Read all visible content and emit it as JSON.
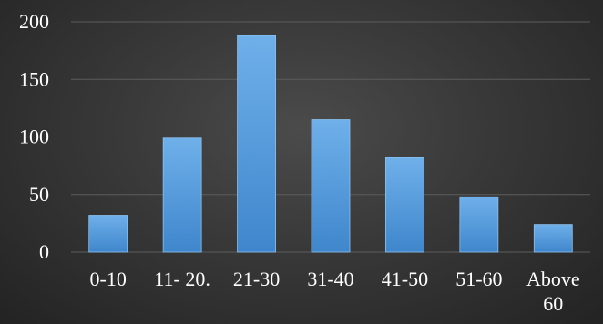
{
  "chart_data": {
    "type": "bar",
    "categories": [
      [
        "0-10"
      ],
      [
        "11- 20."
      ],
      [
        "21-30"
      ],
      [
        "31-40"
      ],
      [
        "41-50"
      ],
      [
        "51-60"
      ],
      [
        "Above",
        "60"
      ]
    ],
    "values": [
      32,
      99,
      188,
      115,
      82,
      48,
      24
    ],
    "ylim": [
      0,
      200
    ],
    "yticks": [
      0,
      50,
      100,
      150,
      200
    ],
    "grid": true,
    "colors": {
      "bar_top": "#6fb0ea",
      "bar_bottom": "#3f86cc",
      "bar_edge": "#8cc2f0",
      "gridline": "#5c5c5c",
      "text": "#ffffff"
    }
  }
}
